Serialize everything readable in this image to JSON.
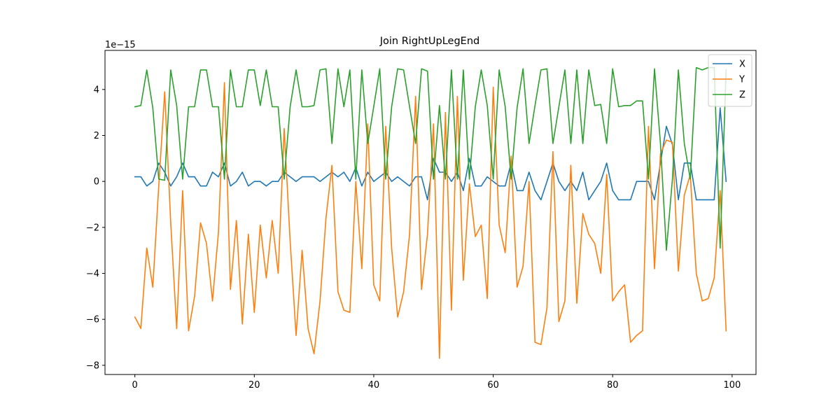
{
  "chart_data": {
    "type": "line",
    "title": "Join RightUpLegEnd",
    "xlabel": "",
    "ylabel": "",
    "offset_text": "1e−15",
    "xlim": [
      -5,
      104
    ],
    "ylim": [
      -8.4,
      5.7
    ],
    "xticks": [
      0,
      20,
      40,
      60,
      80,
      100
    ],
    "yticks": [
      -8,
      -6,
      -4,
      -2,
      0,
      2,
      4
    ],
    "xtick_labels": [
      "0",
      "20",
      "40",
      "60",
      "80",
      "100"
    ],
    "ytick_labels": [
      "−8",
      "−6",
      "−4",
      "−2",
      "0",
      "2",
      "4"
    ],
    "grid": false,
    "legend_position": "top-right",
    "x": [
      0,
      1,
      2,
      3,
      4,
      5,
      6,
      7,
      8,
      9,
      10,
      11,
      12,
      13,
      14,
      15,
      16,
      17,
      18,
      19,
      20,
      21,
      22,
      23,
      24,
      25,
      26,
      27,
      28,
      29,
      30,
      31,
      32,
      33,
      34,
      35,
      36,
      37,
      38,
      39,
      40,
      41,
      42,
      43,
      44,
      45,
      46,
      47,
      48,
      49,
      50,
      51,
      52,
      53,
      54,
      55,
      56,
      57,
      58,
      59,
      60,
      61,
      62,
      63,
      64,
      65,
      66,
      67,
      68,
      69,
      70,
      71,
      72,
      73,
      74,
      75,
      76,
      77,
      78,
      79,
      80,
      81,
      82,
      83,
      84,
      85,
      86,
      87,
      88,
      89,
      90,
      91,
      92,
      93,
      94,
      95,
      96,
      97,
      98,
      99
    ],
    "series": [
      {
        "name": "X",
        "color": "#1f77b4",
        "values": [
          0.2,
          0.2,
          -0.2,
          0,
          0.8,
          0.4,
          -0.2,
          0.2,
          0.8,
          0.2,
          0.2,
          -0.2,
          -0.2,
          0.4,
          0.2,
          0.8,
          -0.2,
          0,
          0.4,
          -0.2,
          0,
          0,
          -0.2,
          0,
          0,
          0.4,
          0.2,
          0,
          0.2,
          0.2,
          0.2,
          0,
          0.2,
          0.4,
          0.2,
          0.4,
          0,
          0.6,
          -0.2,
          0.4,
          0,
          0.2,
          0.4,
          0,
          0.2,
          0,
          -0.2,
          0.2,
          0.2,
          -0.8,
          1,
          0.4,
          0.4,
          0,
          0.4,
          -0.4,
          1,
          -0.2,
          -0.2,
          0.2,
          0,
          -0.2,
          -0.2,
          0.8,
          -0.4,
          -0.4,
          0.4,
          -0.4,
          -0.8,
          0,
          0.8,
          0,
          -0.4,
          0,
          -0.4,
          0.4,
          -0.8,
          -0.4,
          0,
          0.8,
          -0.4,
          -0.8,
          -0.8,
          -0.8,
          0,
          0,
          0,
          -0.8,
          0.8,
          2.4,
          1.6,
          -0.8,
          0.8,
          0.8,
          -0.8,
          -0.8,
          -0.8,
          -0.8,
          3.2,
          0
        ]
      },
      {
        "name": "Y",
        "color": "#ff7f0e",
        "values": [
          -5.9,
          -6.4,
          -2.9,
          -4.6,
          -0.2,
          3.9,
          -1.8,
          -6.4,
          -0.4,
          -6.5,
          -5,
          -1.8,
          -2.7,
          -5.2,
          -2.2,
          4.3,
          -4.7,
          -1.7,
          -6.2,
          -2.3,
          -5.7,
          -1.9,
          -4.2,
          -1.7,
          -4,
          2.3,
          -2.6,
          -6.7,
          -3,
          -6.4,
          -7.5,
          -5.2,
          -1.6,
          0.7,
          -4.8,
          -5.6,
          -5.7,
          0,
          -3.8,
          2.5,
          -4.5,
          -5.2,
          2.4,
          -2.9,
          -5.9,
          -4.8,
          -2.3,
          3.7,
          -4.7,
          -2.3,
          2.5,
          -7.7,
          3,
          -5.6,
          3.7,
          -4.3,
          -0.1,
          -2.4,
          -1.9,
          -5.1,
          4.1,
          -1.9,
          -3.1,
          1.1,
          -4.6,
          -3.7,
          0,
          -7,
          -7.1,
          -5.5,
          1.3,
          -6.1,
          -5.2,
          0.7,
          -5.3,
          -1.4,
          -2.3,
          -2.7,
          -4,
          0.3,
          -5.2,
          -4.8,
          -4.5,
          -7,
          -6.7,
          -6.5,
          2.4,
          -3.8,
          1.2,
          1.8,
          1.7,
          -3.9,
          -0.6,
          0.3,
          -4,
          -5.2,
          -5.1,
          -4.2,
          -0.4,
          -6.5
        ]
      },
      {
        "name": "Z",
        "color": "#2ca02c",
        "values": [
          3.25,
          3.3,
          4.85,
          3.2,
          0.1,
          0.05,
          4.85,
          3.3,
          0.1,
          3.25,
          3.25,
          4.85,
          4.85,
          3.25,
          3.25,
          0.1,
          4.85,
          3.25,
          3.25,
          4.85,
          4.85,
          3.3,
          4.85,
          3.25,
          3.25,
          0.1,
          3.25,
          4.85,
          3.25,
          3.25,
          3.3,
          4.85,
          4.9,
          1.65,
          4.9,
          3.25,
          4.85,
          0.1,
          4.85,
          1.65,
          3.25,
          4.9,
          0.1,
          3.25,
          4.9,
          4.85,
          3.25,
          1.65,
          4.9,
          4.8,
          0.1,
          3.3,
          0.1,
          4.85,
          0.1,
          4.85,
          0.1,
          3.25,
          4.85,
          3.3,
          0.1,
          4.85,
          3.25,
          0.1,
          3.2,
          4.9,
          1.65,
          3.3,
          4.85,
          4.9,
          1.65,
          3.25,
          4.85,
          1.65,
          4.85,
          1.65,
          4.85,
          3.3,
          3.35,
          1.65,
          4.9,
          3.25,
          3.3,
          3.3,
          3.5,
          3.5,
          0.1,
          4.9,
          1.65,
          -3,
          0.1,
          4.85,
          1.65,
          0.1,
          4.95,
          4.85,
          4.95,
          4.95,
          -2.9,
          4.85
        ]
      }
    ]
  }
}
